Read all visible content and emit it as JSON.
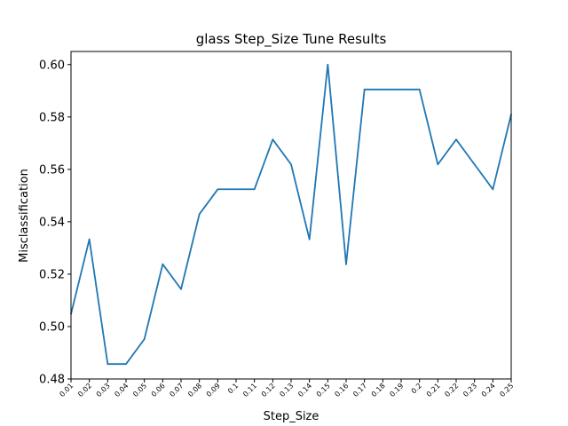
{
  "chart_data": {
    "type": "line",
    "title": "glass Step_Size Tune Results",
    "xlabel": "Step_Size",
    "ylabel": "Misclassification",
    "categories": [
      "0.01",
      "0.02",
      "0.03",
      "0.04",
      "0.05",
      "0.06",
      "0.07",
      "0.08",
      "0.09",
      "0.1",
      "0.11",
      "0.12",
      "0.13",
      "0.14",
      "0.15",
      "0.16",
      "0.17",
      "0.18",
      "0.19",
      "0.2",
      "0.21",
      "0.22",
      "0.23",
      "0.24",
      "0.25"
    ],
    "series": [
      {
        "values": [
          0.5048,
          0.5333,
          0.4857,
          0.4857,
          0.4952,
          0.5238,
          0.5143,
          0.5429,
          0.5524,
          0.5524,
          0.5524,
          0.5714,
          0.5619,
          0.5333,
          0.6,
          0.5238,
          0.5905,
          0.5905,
          0.5905,
          0.5905,
          0.5619,
          0.5714,
          0.5619,
          0.5524,
          0.581
        ],
        "color": "#1f77b4"
      }
    ],
    "ylim": [
      0.48,
      0.605
    ],
    "yticks": [
      "0.48",
      "0.50",
      "0.52",
      "0.54",
      "0.56",
      "0.58",
      "0.60"
    ],
    "grid": false,
    "legend": "none"
  }
}
